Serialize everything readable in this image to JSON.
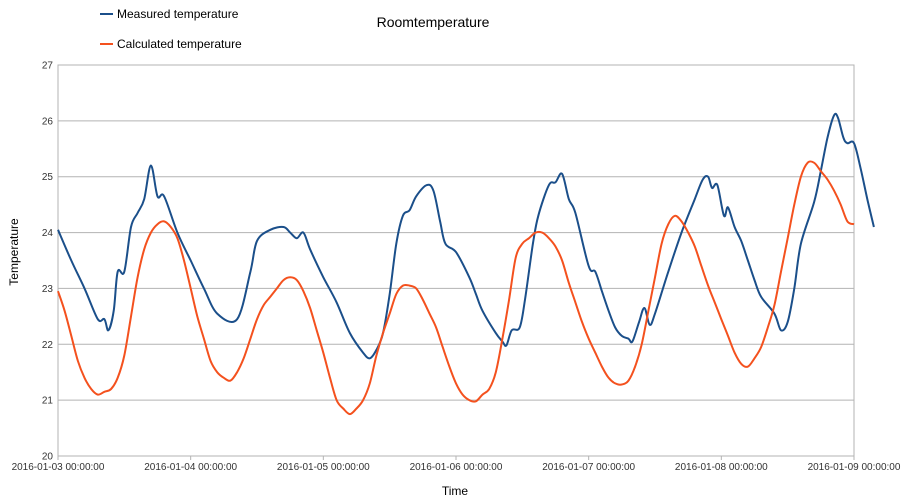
{
  "chart_data": {
    "type": "line",
    "title": "Roomtemperature",
    "xlabel": "Time",
    "ylabel": "Temperature",
    "ylim": [
      20,
      27
    ],
    "yticks": [
      "20",
      "21",
      "22",
      "23",
      "24",
      "25",
      "26",
      "27"
    ],
    "xlim": [
      0,
      6
    ],
    "xticks": [
      "2016-01-03 00:00:00",
      "2016-01-04 00:00:00",
      "2016-01-05 00:00:00",
      "2016-01-06 00:00:00",
      "2016-01-07 00:00:00",
      "2016-01-08 00:00:00",
      "2016-01-09 00:00:00"
    ],
    "grid": "horizontal",
    "legend_position": "top-left",
    "series": [
      {
        "name": "Measured temperature",
        "color": "#1b4f8a",
        "points": [
          [
            0.0,
            24.05
          ],
          [
            0.1,
            23.5
          ],
          [
            0.2,
            23.0
          ],
          [
            0.3,
            22.45
          ],
          [
            0.35,
            22.45
          ],
          [
            0.38,
            22.25
          ],
          [
            0.42,
            22.6
          ],
          [
            0.45,
            23.3
          ],
          [
            0.5,
            23.3
          ],
          [
            0.55,
            24.1
          ],
          [
            0.6,
            24.35
          ],
          [
            0.65,
            24.6
          ],
          [
            0.7,
            25.2
          ],
          [
            0.75,
            24.65
          ],
          [
            0.8,
            24.65
          ],
          [
            0.9,
            24.0
          ],
          [
            1.0,
            23.5
          ],
          [
            1.1,
            23.0
          ],
          [
            1.2,
            22.55
          ],
          [
            1.35,
            22.45
          ],
          [
            1.45,
            23.3
          ],
          [
            1.5,
            23.85
          ],
          [
            1.6,
            24.05
          ],
          [
            1.7,
            24.1
          ],
          [
            1.75,
            24.0
          ],
          [
            1.8,
            23.9
          ],
          [
            1.85,
            24.0
          ],
          [
            1.9,
            23.7
          ],
          [
            2.0,
            23.2
          ],
          [
            2.1,
            22.75
          ],
          [
            2.2,
            22.2
          ],
          [
            2.3,
            21.85
          ],
          [
            2.35,
            21.75
          ],
          [
            2.4,
            21.9
          ],
          [
            2.45,
            22.2
          ],
          [
            2.5,
            22.9
          ],
          [
            2.55,
            23.8
          ],
          [
            2.6,
            24.3
          ],
          [
            2.65,
            24.4
          ],
          [
            2.7,
            24.65
          ],
          [
            2.78,
            24.85
          ],
          [
            2.83,
            24.75
          ],
          [
            2.88,
            24.2
          ],
          [
            2.92,
            23.8
          ],
          [
            3.0,
            23.65
          ],
          [
            3.1,
            23.2
          ],
          [
            3.15,
            22.9
          ],
          [
            3.2,
            22.6
          ],
          [
            3.3,
            22.2
          ],
          [
            3.35,
            22.05
          ],
          [
            3.38,
            21.98
          ],
          [
            3.42,
            22.25
          ],
          [
            3.48,
            22.3
          ],
          [
            3.52,
            22.8
          ],
          [
            3.58,
            23.8
          ],
          [
            3.62,
            24.3
          ],
          [
            3.7,
            24.85
          ],
          [
            3.75,
            24.9
          ],
          [
            3.8,
            25.05
          ],
          [
            3.85,
            24.6
          ],
          [
            3.9,
            24.35
          ],
          [
            4.0,
            23.4
          ],
          [
            4.05,
            23.3
          ],
          [
            4.1,
            22.95
          ],
          [
            4.15,
            22.6
          ],
          [
            4.2,
            22.3
          ],
          [
            4.25,
            22.15
          ],
          [
            4.3,
            22.1
          ],
          [
            4.33,
            22.05
          ],
          [
            4.38,
            22.4
          ],
          [
            4.42,
            22.65
          ],
          [
            4.46,
            22.35
          ],
          [
            4.5,
            22.55
          ],
          [
            4.6,
            23.3
          ],
          [
            4.7,
            24.0
          ],
          [
            4.8,
            24.6
          ],
          [
            4.86,
            24.95
          ],
          [
            4.9,
            25.0
          ],
          [
            4.93,
            24.8
          ],
          [
            4.97,
            24.85
          ],
          [
            5.02,
            24.3
          ],
          [
            5.05,
            24.45
          ],
          [
            5.1,
            24.1
          ],
          [
            5.15,
            23.85
          ],
          [
            5.2,
            23.5
          ],
          [
            5.25,
            23.15
          ],
          [
            5.3,
            22.85
          ],
          [
            5.4,
            22.55
          ],
          [
            5.45,
            22.25
          ],
          [
            5.5,
            22.4
          ],
          [
            5.55,
            23.0
          ],
          [
            5.6,
            23.8
          ],
          [
            5.7,
            24.55
          ],
          [
            5.75,
            25.1
          ],
          [
            5.8,
            25.7
          ],
          [
            5.85,
            26.1
          ],
          [
            5.88,
            26.05
          ],
          [
            5.92,
            25.7
          ],
          [
            5.95,
            25.6
          ],
          [
            6.0,
            25.6
          ],
          [
            6.05,
            25.15
          ],
          [
            6.1,
            24.6
          ],
          [
            6.15,
            24.1
          ]
        ]
      },
      {
        "name": "Calculated temperature",
        "color": "#f4511e",
        "points": [
          [
            0.0,
            22.95
          ],
          [
            0.05,
            22.6
          ],
          [
            0.1,
            22.15
          ],
          [
            0.15,
            21.7
          ],
          [
            0.2,
            21.4
          ],
          [
            0.25,
            21.2
          ],
          [
            0.3,
            21.1
          ],
          [
            0.35,
            21.15
          ],
          [
            0.4,
            21.2
          ],
          [
            0.45,
            21.4
          ],
          [
            0.5,
            21.8
          ],
          [
            0.55,
            22.5
          ],
          [
            0.6,
            23.2
          ],
          [
            0.65,
            23.7
          ],
          [
            0.7,
            24.0
          ],
          [
            0.75,
            24.15
          ],
          [
            0.8,
            24.2
          ],
          [
            0.85,
            24.1
          ],
          [
            0.9,
            23.9
          ],
          [
            0.95,
            23.5
          ],
          [
            1.0,
            23.0
          ],
          [
            1.05,
            22.5
          ],
          [
            1.1,
            22.1
          ],
          [
            1.15,
            21.7
          ],
          [
            1.2,
            21.5
          ],
          [
            1.25,
            21.4
          ],
          [
            1.3,
            21.35
          ],
          [
            1.35,
            21.5
          ],
          [
            1.4,
            21.75
          ],
          [
            1.45,
            22.1
          ],
          [
            1.5,
            22.45
          ],
          [
            1.55,
            22.7
          ],
          [
            1.6,
            22.85
          ],
          [
            1.65,
            23.0
          ],
          [
            1.7,
            23.15
          ],
          [
            1.75,
            23.2
          ],
          [
            1.8,
            23.15
          ],
          [
            1.85,
            22.95
          ],
          [
            1.9,
            22.65
          ],
          [
            1.95,
            22.25
          ],
          [
            2.0,
            21.85
          ],
          [
            2.05,
            21.4
          ],
          [
            2.1,
            21.0
          ],
          [
            2.15,
            20.85
          ],
          [
            2.2,
            20.75
          ],
          [
            2.25,
            20.85
          ],
          [
            2.3,
            21.0
          ],
          [
            2.35,
            21.3
          ],
          [
            2.4,
            21.8
          ],
          [
            2.45,
            22.2
          ],
          [
            2.5,
            22.55
          ],
          [
            2.55,
            22.9
          ],
          [
            2.6,
            23.05
          ],
          [
            2.65,
            23.05
          ],
          [
            2.7,
            23.0
          ],
          [
            2.75,
            22.8
          ],
          [
            2.8,
            22.55
          ],
          [
            2.85,
            22.3
          ],
          [
            2.9,
            21.95
          ],
          [
            2.95,
            21.6
          ],
          [
            3.0,
            21.3
          ],
          [
            3.05,
            21.1
          ],
          [
            3.1,
            21.0
          ],
          [
            3.15,
            20.98
          ],
          [
            3.2,
            21.1
          ],
          [
            3.25,
            21.2
          ],
          [
            3.3,
            21.5
          ],
          [
            3.35,
            22.1
          ],
          [
            3.4,
            22.8
          ],
          [
            3.45,
            23.55
          ],
          [
            3.5,
            23.8
          ],
          [
            3.55,
            23.9
          ],
          [
            3.6,
            24.0
          ],
          [
            3.65,
            24.0
          ],
          [
            3.7,
            23.9
          ],
          [
            3.75,
            23.75
          ],
          [
            3.8,
            23.5
          ],
          [
            3.85,
            23.1
          ],
          [
            3.9,
            22.75
          ],
          [
            3.95,
            22.4
          ],
          [
            4.0,
            22.1
          ],
          [
            4.05,
            21.85
          ],
          [
            4.1,
            21.6
          ],
          [
            4.15,
            21.4
          ],
          [
            4.2,
            21.3
          ],
          [
            4.25,
            21.28
          ],
          [
            4.3,
            21.35
          ],
          [
            4.35,
            21.6
          ],
          [
            4.4,
            22.0
          ],
          [
            4.45,
            22.6
          ],
          [
            4.5,
            23.2
          ],
          [
            4.55,
            23.8
          ],
          [
            4.6,
            24.15
          ],
          [
            4.65,
            24.3
          ],
          [
            4.7,
            24.2
          ],
          [
            4.75,
            24.0
          ],
          [
            4.8,
            23.75
          ],
          [
            4.85,
            23.4
          ],
          [
            4.9,
            23.05
          ],
          [
            4.95,
            22.75
          ],
          [
            5.0,
            22.45
          ],
          [
            5.05,
            22.15
          ],
          [
            5.1,
            21.85
          ],
          [
            5.15,
            21.65
          ],
          [
            5.2,
            21.6
          ],
          [
            5.25,
            21.75
          ],
          [
            5.3,
            21.95
          ],
          [
            5.35,
            22.3
          ],
          [
            5.4,
            22.7
          ],
          [
            5.45,
            23.3
          ],
          [
            5.5,
            23.9
          ],
          [
            5.55,
            24.5
          ],
          [
            5.6,
            25.0
          ],
          [
            5.65,
            25.25
          ],
          [
            5.7,
            25.25
          ],
          [
            5.75,
            25.1
          ],
          [
            5.8,
            24.95
          ],
          [
            5.85,
            24.75
          ],
          [
            5.9,
            24.5
          ],
          [
            5.95,
            24.2
          ],
          [
            6.0,
            24.15
          ]
        ]
      }
    ]
  }
}
